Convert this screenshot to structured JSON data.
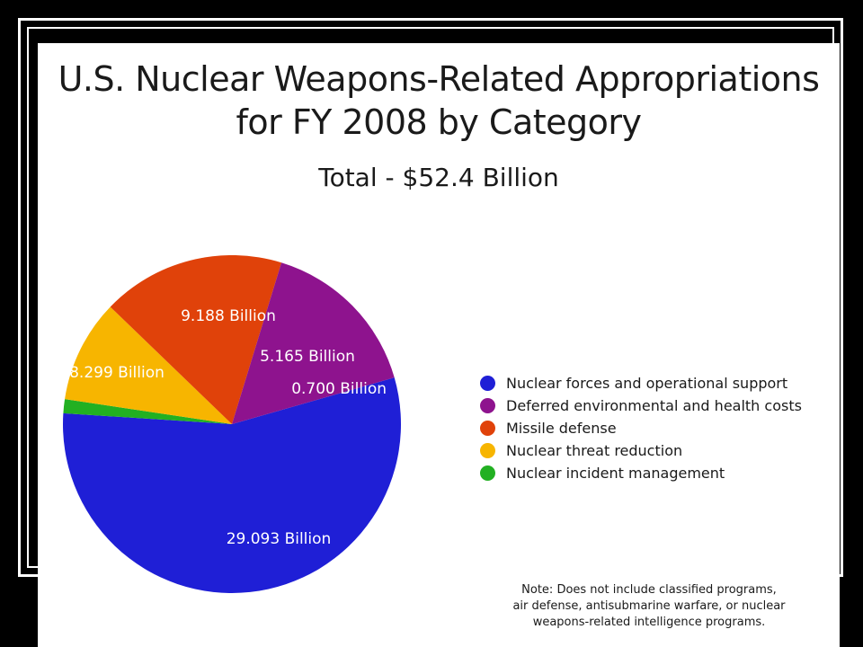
{
  "chart_data": {
    "type": "pie",
    "title": "U.S. Nuclear Weapons-Related Appropriations for FY 2008 by Category",
    "title_lines": [
      "U.S. Nuclear Weapons-Related Appropriations",
      "for FY 2008 by Category"
    ],
    "subtitle": "Total - $52.4 Billion",
    "unit": "Billion",
    "slices": [
      {
        "label": "Nuclear forces and operational support",
        "value": 29.093,
        "data_label": "29.093 Billion",
        "color": "#1f1fd6"
      },
      {
        "label": "Nuclear incident management",
        "value": 0.7,
        "data_label": "0.700 Billion",
        "color": "#22b022"
      },
      {
        "label": "Nuclear threat reduction",
        "value": 5.165,
        "data_label": "5.165 Billion",
        "color": "#f7b500"
      },
      {
        "label": "Missile defense",
        "value": 9.188,
        "data_label": "9.188 Billion",
        "color": "#e0420a"
      },
      {
        "label": "Deferred environmental and health costs",
        "value": 8.299,
        "data_label": "8.299 Billion",
        "color": "#8e138e"
      }
    ],
    "legend": {
      "placement": "right",
      "entries": [
        {
          "label": "Nuclear forces and operational support",
          "color": "#1f1fd6"
        },
        {
          "label": "Deferred environmental and health costs",
          "color": "#8e138e"
        },
        {
          "label": "Missile defense",
          "color": "#e0420a"
        },
        {
          "label": "Nuclear threat reduction",
          "color": "#f7b500"
        },
        {
          "label": "Nuclear incident management",
          "color": "#22b022"
        }
      ]
    },
    "note_lines": [
      "Note:  Does not include classified programs,",
      "air defense, antisubmarine warfare, or nuclear",
      "weapons-related intelligence programs."
    ]
  }
}
